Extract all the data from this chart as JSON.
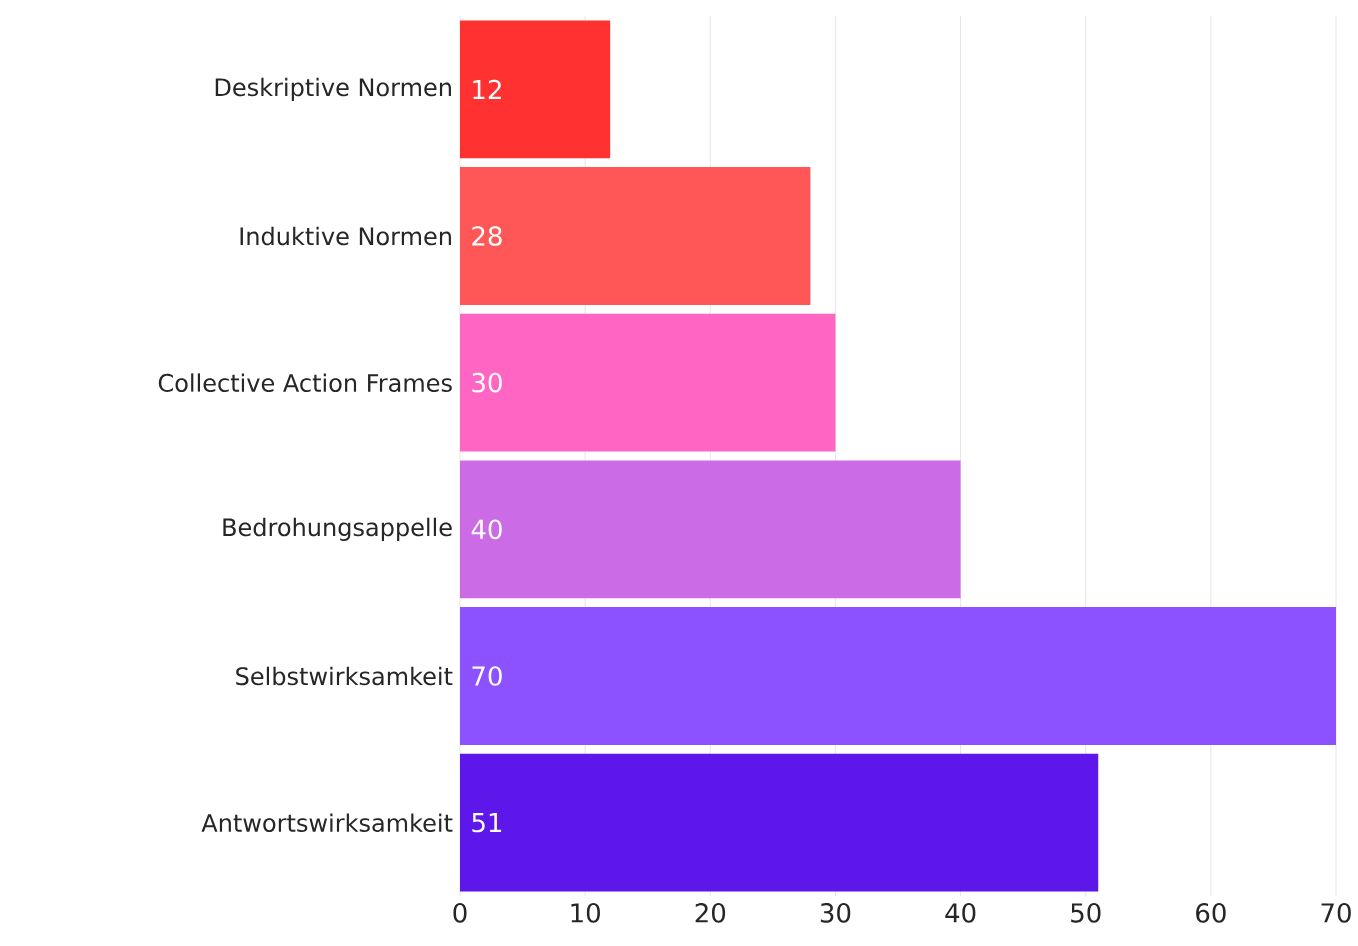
{
  "chart_data": {
    "type": "bar",
    "orientation": "horizontal",
    "categories": [
      "Deskriptive Normen",
      "Induktive Normen",
      "Collective Action Frames",
      "Bedrohungsappelle",
      "Selbstwirksamkeit",
      "Antwortswirksamkeit"
    ],
    "values": [
      12,
      28,
      30,
      40,
      70,
      51
    ],
    "colors": [
      "#ff3131",
      "#ff5757",
      "#ff66c4",
      "#cb6ce6",
      "#8c52ff",
      "#5e17eb"
    ],
    "xlim": [
      0,
      70
    ],
    "xticks": [
      0,
      10,
      20,
      30,
      40,
      50,
      60,
      70
    ],
    "grid": "x",
    "data_labels": true
  }
}
